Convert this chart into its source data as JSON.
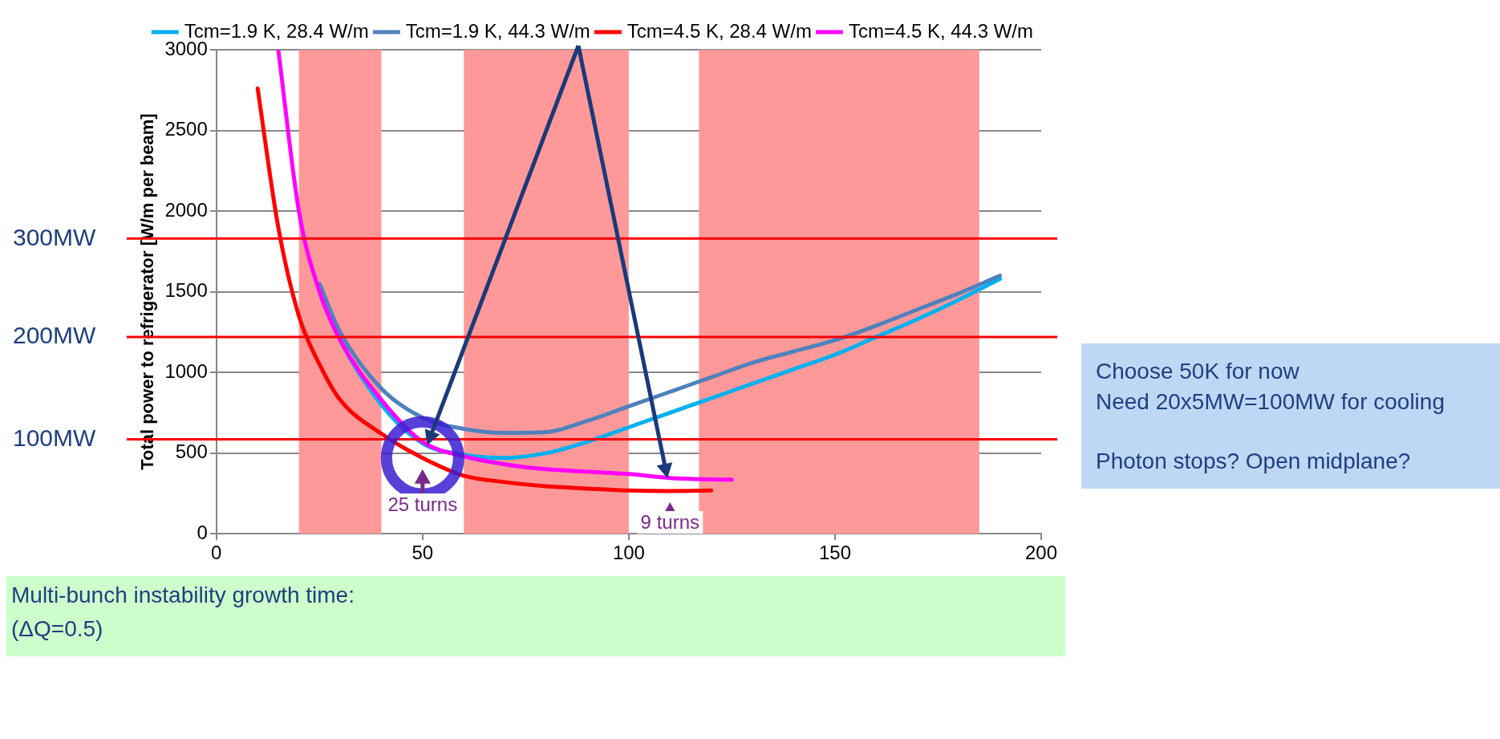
{
  "chart_data": {
    "type": "line",
    "ylabel": "Total power to refrigerator [W/m per beam]",
    "xlim": [
      0,
      200
    ],
    "xticks": [
      0,
      50,
      100,
      150,
      200
    ],
    "ylim": [
      0,
      3000
    ],
    "yticks": [
      0,
      500,
      1000,
      1500,
      2000,
      2500,
      3000
    ],
    "grid": "y",
    "legend": "top right",
    "marker": "none",
    "line_style": "solid",
    "series": [
      {
        "name": "Tcm=1.9 K, 28.4 W/m",
        "color": "#00b0f0",
        "x": [
          25,
          30,
          40,
          50,
          60,
          70,
          80,
          90,
          100,
          110,
          120,
          130,
          140,
          150,
          160,
          170,
          180,
          190
        ],
        "values": [
          1500,
          1200,
          800,
          560,
          490,
          470,
          500,
          570,
          660,
          750,
          840,
          930,
          1020,
          1110,
          1220,
          1330,
          1450,
          1580
        ]
      },
      {
        "name": "Tcm=1.9 K, 44.3 W/m",
        "color": "#4f81bd",
        "x": [
          25,
          30,
          40,
          50,
          60,
          70,
          80,
          90,
          100,
          110,
          120,
          130,
          140,
          150,
          160,
          170,
          180,
          190
        ],
        "values": [
          1550,
          1250,
          900,
          720,
          650,
          625,
          630,
          700,
          790,
          880,
          970,
          1060,
          1130,
          1200,
          1290,
          1390,
          1490,
          1600
        ]
      },
      {
        "name": "Tcm=4.5 K, 28.4 W/m",
        "color": "#ff0000",
        "x": [
          10,
          15,
          20,
          25,
          30,
          40,
          50,
          60,
          70,
          80,
          90,
          100,
          110,
          120
        ],
        "values": [
          2760,
          1900,
          1350,
          1050,
          830,
          620,
          470,
          360,
          320,
          294,
          280,
          268,
          265,
          268
        ]
      },
      {
        "name": "Tcm=4.5 K, 44.3 W/m",
        "color": "#ff00ff",
        "x": [
          15,
          20,
          25,
          30,
          40,
          50,
          60,
          70,
          80,
          90,
          100,
          110,
          120,
          125
        ],
        "values": [
          3000,
          2000,
          1500,
          1200,
          830,
          570,
          480,
          430,
          400,
          385,
          370,
          346,
          337,
          335
        ]
      }
    ],
    "bands": [
      {
        "axis": "x",
        "from": 20,
        "to": 40,
        "color": "#ff9999"
      },
      {
        "axis": "x",
        "from": 60,
        "to": 100,
        "color": "#ff9999"
      },
      {
        "axis": "x",
        "from": 117,
        "to": 185,
        "color": "#ff9999"
      }
    ],
    "ref_lines": [
      {
        "axis": "y",
        "value": 1830,
        "label": "300MW",
        "color": "#ff0000"
      },
      {
        "axis": "y",
        "value": 1220,
        "label": "200MW",
        "color": "#ff0000"
      },
      {
        "axis": "y",
        "value": 585,
        "label": "100MW",
        "color": "#ff0000"
      }
    ],
    "annotations": [
      "Multi-bunch instability growth time:",
      "(ΔQ=0.5)",
      {
        "text": "25 turns",
        "x": 50,
        "y": 470
      },
      {
        "text": "9 turns",
        "x": 110,
        "y": 265
      },
      "Choose 50K for now",
      "Need 20x5MW=100MW for cooling",
      "Photon stops? Open midplane?"
    ]
  }
}
